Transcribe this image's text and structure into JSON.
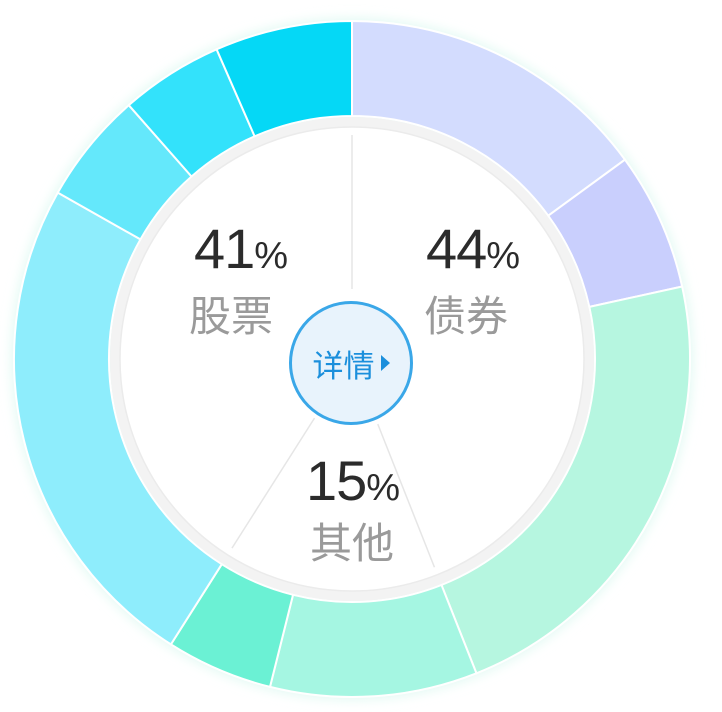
{
  "chart_data": {
    "type": "pie",
    "categories": [
      "股票",
      "债券",
      "其他"
    ],
    "values": [
      41,
      44,
      15
    ],
    "value_labels": [
      "41",
      "44",
      "15"
    ],
    "unit": "%",
    "center_button": "详情",
    "colors": {
      "股票": [
        "#05d8f6",
        "#33e2fb",
        "#64e8fb",
        "#8eedfc"
      ],
      "债券": [
        "#d3dcfe",
        "#c9cffd",
        "#b6f6e0"
      ],
      "其他": [
        "#a5f6e2",
        "#6bf1d4"
      ],
      "inner_fill": "#ffffff",
      "inner_border": "#ebebeb",
      "divider": "#e6e6e6",
      "glow": "#dff9f2"
    }
  }
}
